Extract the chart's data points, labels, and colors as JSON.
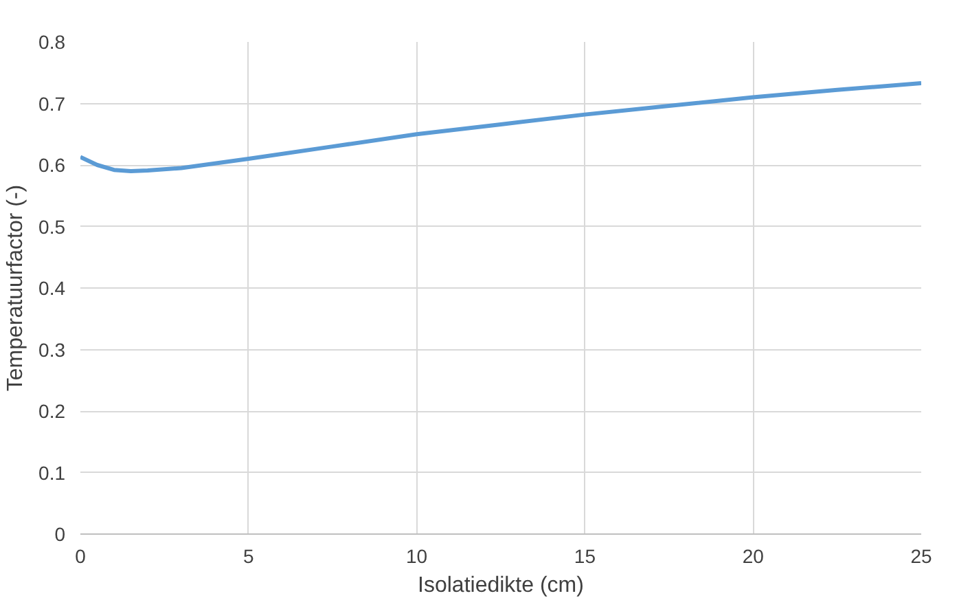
{
  "chart_data": {
    "type": "line",
    "xlabel": "Isolatiedikte (cm)",
    "ylabel": "Temperatuurfactor (-)",
    "x": [
      0,
      0.5,
      1,
      1.5,
      2,
      3,
      5,
      7.5,
      10,
      12.5,
      15,
      17.5,
      20,
      22.5,
      25
    ],
    "series": [
      {
        "color": "#5b9bd5",
        "values": [
          0.613,
          0.6,
          0.592,
          0.59,
          0.591,
          0.595,
          0.61,
          0.63,
          0.65,
          0.666,
          0.682,
          0.696,
          0.71,
          0.722,
          0.733
        ]
      }
    ],
    "xlim": [
      0,
      25
    ],
    "xticks": [
      0,
      5,
      10,
      15,
      20,
      25
    ],
    "ylim": [
      0,
      0.8
    ],
    "yticks": [
      0,
      0.1,
      0.2,
      0.3,
      0.4,
      0.5,
      0.6,
      0.7,
      0.8
    ],
    "grid": true,
    "marker": "none",
    "line_style": "solid"
  }
}
